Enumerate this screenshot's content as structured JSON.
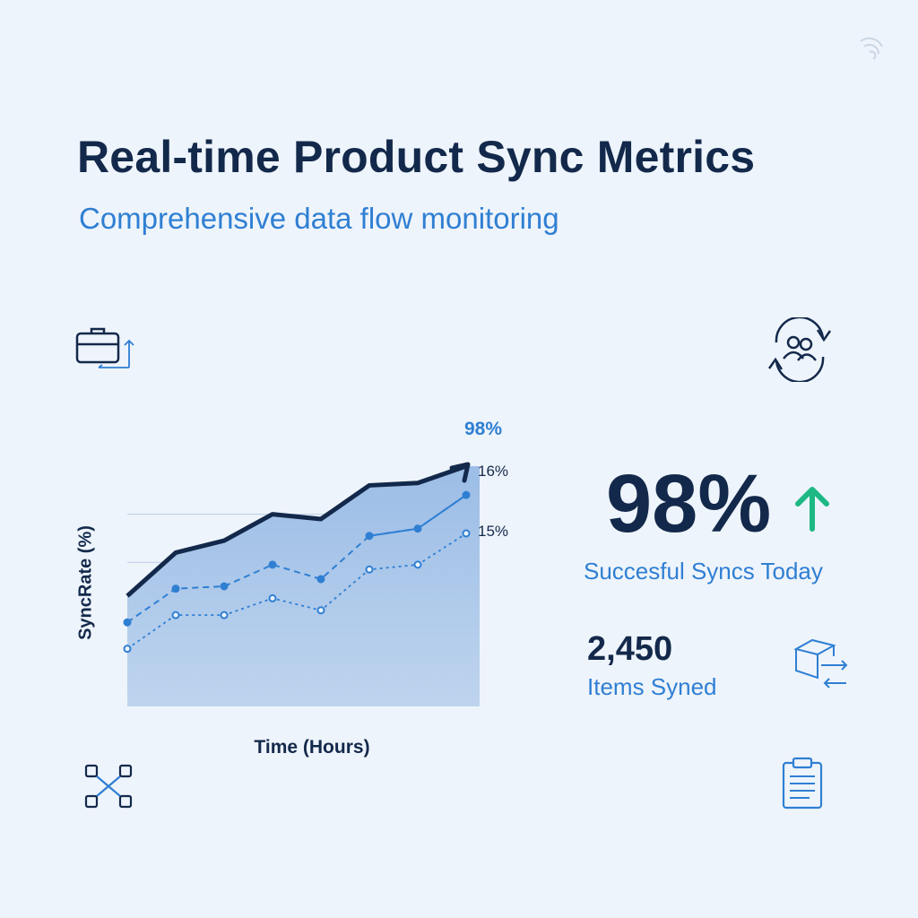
{
  "header": {
    "title": "Real-time Product Sync Metrics",
    "subtitle": "Comprehensive data flow monitoring"
  },
  "icons": {
    "top_left": "briefcase-icon",
    "top_right": "user-sync-icon",
    "bottom_left": "network-icon",
    "bottom_right": "clipboard-icon",
    "items": "box-transfer-icon",
    "top_corner": "spinner-icon"
  },
  "kpi": {
    "value": "98%",
    "label": "Succesful Syncs Today",
    "trend": "up"
  },
  "items": {
    "count": "2,450",
    "label": "Items Syned"
  },
  "colors": {
    "navy": "#13294b",
    "blue": "#2f7fd3",
    "area": "#a9c6e8",
    "green": "#1db884",
    "background": "#eef4fb"
  },
  "chart_data": {
    "type": "area",
    "x": [
      1,
      2,
      3,
      4,
      5,
      6,
      7,
      8
    ],
    "ylabel": "SyncRate (%)",
    "xlabel": "Time (Hours)",
    "ylim": [
      0,
      100
    ],
    "grid": true,
    "series": [
      {
        "values": [
          46,
          64,
          69,
          80,
          78,
          92,
          93,
          100
        ]
      },
      {
        "values": [
          35,
          49,
          50,
          59,
          53,
          71,
          74,
          88
        ]
      },
      {
        "values": [
          24,
          38,
          38,
          45,
          40,
          57,
          59,
          72
        ]
      }
    ],
    "annotations": [
      "98%",
      "16%",
      "15%"
    ]
  }
}
